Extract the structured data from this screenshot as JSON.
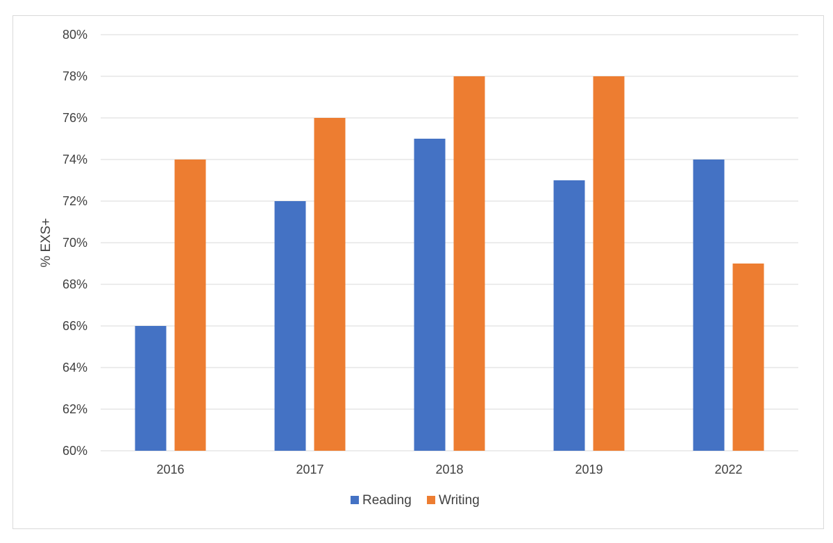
{
  "chart_data": {
    "type": "bar",
    "categories": [
      "2016",
      "2017",
      "2018",
      "2019",
      "2022"
    ],
    "series": [
      {
        "name": "Reading",
        "color": "#4472c4",
        "values": [
          66,
          72,
          75,
          73,
          74
        ]
      },
      {
        "name": "Writing",
        "color": "#ed7d31",
        "values": [
          74,
          76,
          78,
          78,
          69
        ]
      }
    ],
    "ylabel": "% EXS+",
    "xlabel": "",
    "ylim": [
      60,
      80
    ],
    "ytick_step": 2,
    "ytick_format": "percent",
    "y_ticks": [
      "60%",
      "62%",
      "64%",
      "66%",
      "68%",
      "70%",
      "72%",
      "74%",
      "76%",
      "78%",
      "80%"
    ],
    "grid": true,
    "legend_position": "bottom-center",
    "gridline_color": "#d9d9d9"
  }
}
